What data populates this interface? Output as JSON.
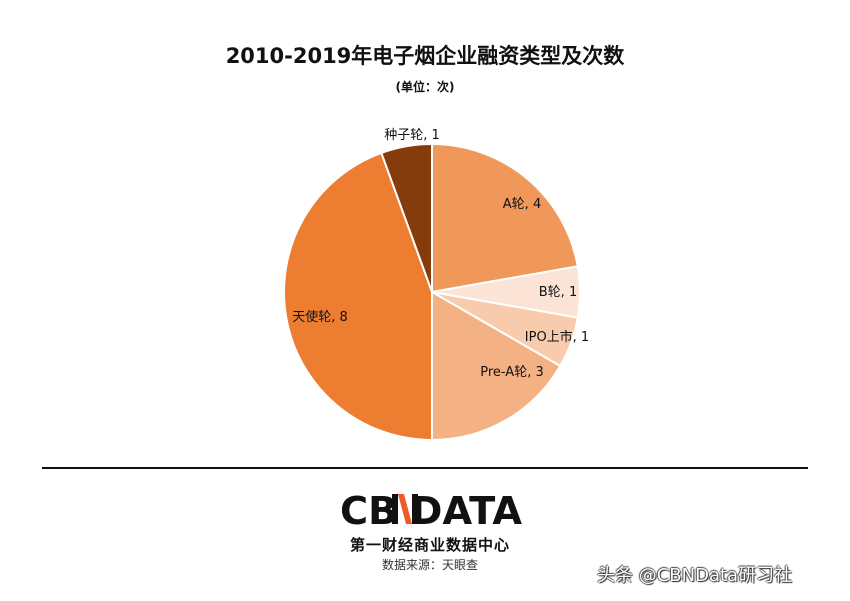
{
  "chart_data": {
    "type": "pie",
    "title": "2010-2019年电子烟企业融资类型及次数",
    "subtitle": "(单位：次)",
    "start": "12 o'clock, clockwise",
    "slices": [
      {
        "label": "A轮",
        "value": 4,
        "color": "#f0975a"
      },
      {
        "label": "B轮",
        "value": 1,
        "color": "#fbe4d5"
      },
      {
        "label": "IPO上市",
        "value": 1,
        "color": "#f8cbad"
      },
      {
        "label": "Pre-A轮",
        "value": 3,
        "color": "#f4b183"
      },
      {
        "label": "天使轮",
        "value": 8,
        "color": "#ed7d31"
      },
      {
        "label": "种子轮",
        "value": 1,
        "color": "#843c0c"
      }
    ]
  },
  "footer": {
    "logo": "CBNDATA",
    "logo_subtitle": "第一财经商业数据中心",
    "source": "数据来源：天眼查",
    "watermark": "头条 @CBNData研习社",
    "accent": "#f05a28"
  }
}
